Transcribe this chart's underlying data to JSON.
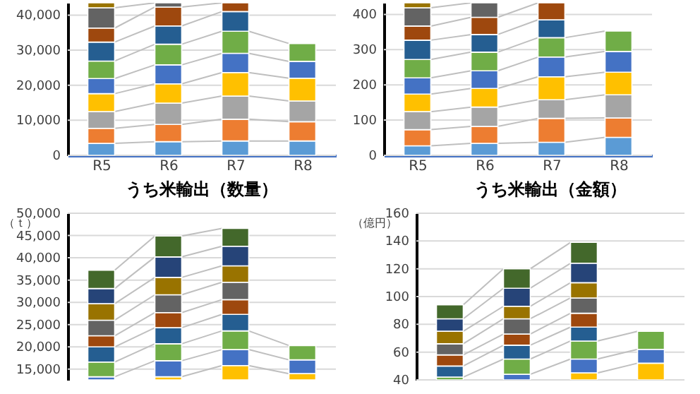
{
  "chart_data": [
    {
      "type": "bar",
      "stacked": true,
      "categories": [
        "R5",
        "R6",
        "R7",
        "R8"
      ],
      "ylim": [
        0,
        43500
      ],
      "yticks": [
        0,
        {
          "value": 10000,
          "label": "10,000"
        },
        {
          "value": 20000,
          "label": "20,000"
        },
        {
          "value": 30000,
          "label": "30,000"
        },
        {
          "value": 40000,
          "label": "40,000"
        }
      ],
      "grid": "y",
      "series": [
        {
          "color": "#5b9bd5",
          "values": [
            3400,
            3900,
            4100,
            4100
          ]
        },
        {
          "color": "#ed7d31",
          "values": [
            4300,
            4900,
            6200,
            5500
          ]
        },
        {
          "color": "#a5a5a5",
          "values": [
            4800,
            6100,
            6600,
            5900
          ]
        },
        {
          "color": "#ffc000",
          "values": [
            5100,
            5500,
            6700,
            6500
          ]
        },
        {
          "color": "#4472c4",
          "values": [
            4300,
            5400,
            5500,
            4800
          ]
        },
        {
          "color": "#70ad47",
          "values": [
            5000,
            5900,
            6300,
            5100
          ]
        },
        {
          "color": "#255e91",
          "values": [
            5400,
            5200,
            5600,
            null
          ]
        },
        {
          "color": "#9e480e",
          "values": [
            4000,
            5400,
            2500,
            null
          ]
        },
        {
          "color": "#636363",
          "values": [
            5800,
            1200,
            null,
            null
          ]
        },
        {
          "color": "#997300",
          "values": [
            1400,
            null,
            null,
            null
          ]
        }
      ]
    },
    {
      "type": "bar",
      "stacked": true,
      "categories": [
        "R5",
        "R6",
        "R7",
        "R8"
      ],
      "ylim": [
        0,
        433
      ],
      "yticks": [
        0,
        100,
        200,
        300,
        400
      ],
      "grid": "y",
      "series": [
        {
          "color": "#5b9bd5",
          "values": [
            27,
            34,
            37,
            51
          ]
        },
        {
          "color": "#ed7d31",
          "values": [
            46,
            48,
            68,
            55
          ]
        },
        {
          "color": "#a5a5a5",
          "values": [
            51,
            55,
            53,
            66
          ]
        },
        {
          "color": "#ffc000",
          "values": [
            50,
            53,
            65,
            64
          ]
        },
        {
          "color": "#4472c4",
          "values": [
            46,
            50,
            56,
            59
          ]
        },
        {
          "color": "#70ad47",
          "values": [
            52,
            53,
            55,
            58
          ]
        },
        {
          "color": "#255e91",
          "values": [
            55,
            50,
            51,
            null
          ]
        },
        {
          "color": "#9e480e",
          "values": [
            40,
            49,
            48,
            null
          ]
        },
        {
          "color": "#636363",
          "values": [
            52,
            41,
            null,
            null
          ]
        },
        {
          "color": "#997300",
          "values": [
            14,
            null,
            null,
            null
          ]
        }
      ]
    },
    {
      "type": "bar",
      "title": "うち米輸出（数量）",
      "ylabel": "（ｔ）",
      "categories": [
        null,
        null,
        null,
        null
      ],
      "tick_labels": "y",
      "ylim": [
        12600,
        50000
      ],
      "yticks": [
        {
          "value": 15000,
          "label": "15,000"
        },
        {
          "value": 20000,
          "label": "20,000"
        },
        {
          "value": 25000,
          "label": "25,000"
        },
        {
          "value": 30000,
          "label": "30,000"
        },
        {
          "value": 35000,
          "label": "35,000"
        },
        {
          "value": 40000,
          "label": "40,000"
        },
        {
          "value": 45000,
          "label": "45,000"
        },
        {
          "value": 50000,
          "label": "50,000"
        }
      ],
      "grid": "y",
      "series": [
        {
          "color": "#ffc000",
          "base": [
            null,
            12600,
            12600,
            12600
          ],
          "values": [
            null,
            700,
            3200,
            1400
          ]
        },
        {
          "color": "#4472c4",
          "base": [
            12600,
            13300,
            15800,
            14000
          ],
          "values": [
            700,
            3600,
            3600,
            3100
          ]
        },
        {
          "color": "#70ad47",
          "base": [
            13300,
            16900,
            19400,
            17100
          ],
          "values": [
            3300,
            3800,
            4200,
            3200
          ]
        },
        {
          "color": "#255e91",
          "base": [
            16600,
            20700,
            23600,
            null
          ],
          "values": [
            3400,
            3600,
            3700,
            null
          ]
        },
        {
          "color": "#9e480e",
          "base": [
            20000,
            24300,
            27300,
            null
          ],
          "values": [
            2500,
            3400,
            3300,
            null
          ]
        },
        {
          "color": "#636363",
          "base": [
            22500,
            27700,
            30600,
            null
          ],
          "values": [
            3500,
            4000,
            3900,
            null
          ]
        },
        {
          "color": "#997300",
          "base": [
            26000,
            31700,
            34500,
            null
          ],
          "values": [
            3700,
            3900,
            3700,
            null
          ]
        },
        {
          "color": "#264478",
          "base": [
            29700,
            35600,
            38200,
            null
          ],
          "values": [
            3400,
            4600,
            4400,
            null
          ]
        },
        {
          "color": "#43682b",
          "base": [
            33100,
            40200,
            42600,
            null
          ],
          "values": [
            4100,
            4700,
            4000,
            null
          ]
        }
      ]
    },
    {
      "type": "bar",
      "title": "うち米輸出（金額）",
      "ylabel": "（億円）",
      "categories": [
        null,
        null,
        null,
        null
      ],
      "tick_labels": "y",
      "ylim": [
        40,
        160
      ],
      "yticks": [
        40,
        60,
        80,
        100,
        120,
        140,
        160
      ],
      "grid": "y",
      "series": [
        {
          "color": "#ffc000",
          "base": [
            null,
            null,
            40,
            40
          ],
          "values": [
            null,
            null,
            5,
            12
          ]
        },
        {
          "color": "#4472c4",
          "base": [
            null,
            40,
            45,
            52
          ],
          "values": [
            null,
            4,
            10,
            10
          ]
        },
        {
          "color": "#70ad47",
          "base": [
            40,
            44,
            55,
            62
          ],
          "values": [
            2,
            11,
            13,
            13
          ]
        },
        {
          "color": "#255e91",
          "base": [
            42,
            55,
            68,
            null
          ],
          "values": [
            8,
            10,
            10,
            null
          ]
        },
        {
          "color": "#9e480e",
          "base": [
            50,
            65,
            78,
            null
          ],
          "values": [
            8,
            8,
            10,
            null
          ]
        },
        {
          "color": "#636363",
          "base": [
            58,
            73,
            88,
            null
          ],
          "values": [
            8,
            11,
            11,
            null
          ]
        },
        {
          "color": "#997300",
          "base": [
            66,
            84,
            99,
            null
          ],
          "values": [
            9,
            9,
            11,
            null
          ]
        },
        {
          "color": "#264478",
          "base": [
            75,
            93,
            110,
            null
          ],
          "values": [
            9,
            13,
            14,
            null
          ]
        },
        {
          "color": "#43682b",
          "base": [
            84,
            106,
            124,
            null
          ],
          "values": [
            10,
            14,
            15,
            null
          ]
        }
      ]
    }
  ]
}
